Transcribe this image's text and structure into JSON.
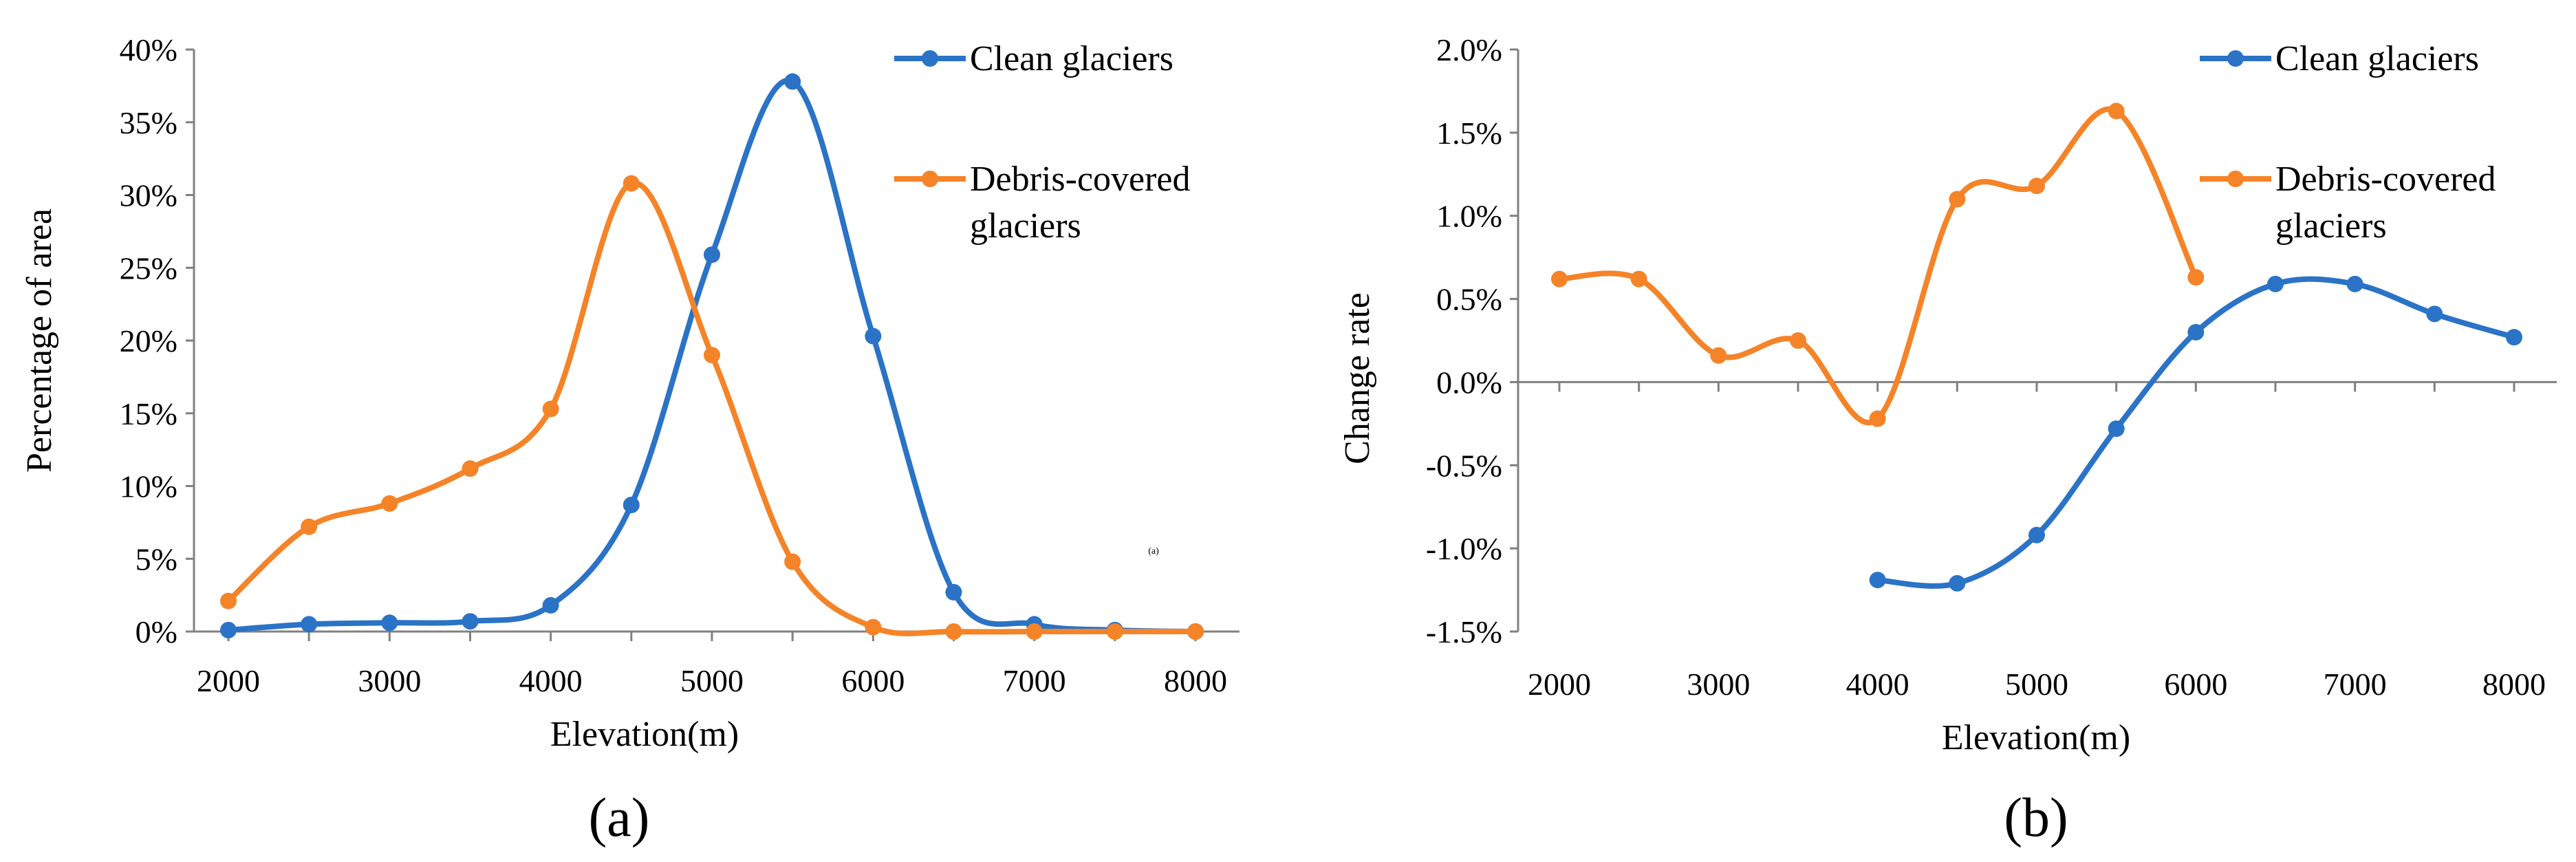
{
  "colors": {
    "clean": "#2a73c6",
    "debris": "#f58327",
    "axis": "#808080"
  },
  "chart_data": [
    {
      "type": "line",
      "panel_label": "(a)",
      "title": "",
      "xlabel": "Elevation(m)",
      "ylabel": "Percentage of area",
      "x": [
        2000,
        2500,
        3000,
        3500,
        4000,
        4500,
        5000,
        5500,
        6000,
        6500,
        7000,
        7500,
        8000
      ],
      "xlim": [
        2000,
        8000
      ],
      "ylim": [
        0,
        40
      ],
      "x_ticks": [
        "2000",
        "3000",
        "4000",
        "5000",
        "6000",
        "7000",
        "8000"
      ],
      "y_ticks": [
        "0%",
        "5%",
        "10%",
        "15%",
        "20%",
        "25%",
        "30%",
        "35%",
        "40%"
      ],
      "annotation": "(a)",
      "legend_position": "top-right",
      "series": [
        {
          "name": "Clean glaciers",
          "color_key": "clean",
          "values": [
            0.1,
            0.5,
            0.6,
            0.7,
            1.8,
            8.7,
            25.9,
            37.8,
            20.3,
            2.7,
            0.5,
            0.1,
            0.0
          ]
        },
        {
          "name": "Debris-covered glaciers",
          "color_key": "debris",
          "values": [
            2.1,
            7.2,
            8.8,
            11.2,
            15.3,
            30.8,
            19.0,
            4.8,
            0.3,
            0.0,
            0.0,
            0.0,
            0.0
          ]
        }
      ]
    },
    {
      "type": "line",
      "panel_label": "(b)",
      "title": "",
      "xlabel": "Elevation(m)",
      "ylabel": "Change rate",
      "xlim": [
        2000,
        8000
      ],
      "ylim": [
        -1.5,
        2.0
      ],
      "x_ticks": [
        "2000",
        "3000",
        "4000",
        "5000",
        "6000",
        "7000",
        "8000"
      ],
      "y_ticks": [
        "-1.5%",
        "-1.0%",
        "-0.5%",
        "0.0%",
        "0.5%",
        "1.0%",
        "1.5%",
        "2.0%"
      ],
      "legend_position": "top-right",
      "series": [
        {
          "name": "Clean glaciers",
          "color_key": "clean",
          "x": [
            4000,
            4500,
            5000,
            5500,
            6000,
            6500,
            7000,
            7500,
            8000
          ],
          "values": [
            -1.19,
            -1.21,
            -0.92,
            -0.28,
            0.3,
            0.59,
            0.59,
            0.41,
            0.27
          ]
        },
        {
          "name": "Debris-covered glaciers",
          "color_key": "debris",
          "x": [
            2000,
            2500,
            3000,
            3500,
            4000,
            4500,
            5000,
            5500,
            6000
          ],
          "values": [
            0.62,
            0.62,
            0.16,
            0.25,
            -0.22,
            1.1,
            1.18,
            1.63,
            0.63
          ]
        }
      ]
    }
  ]
}
